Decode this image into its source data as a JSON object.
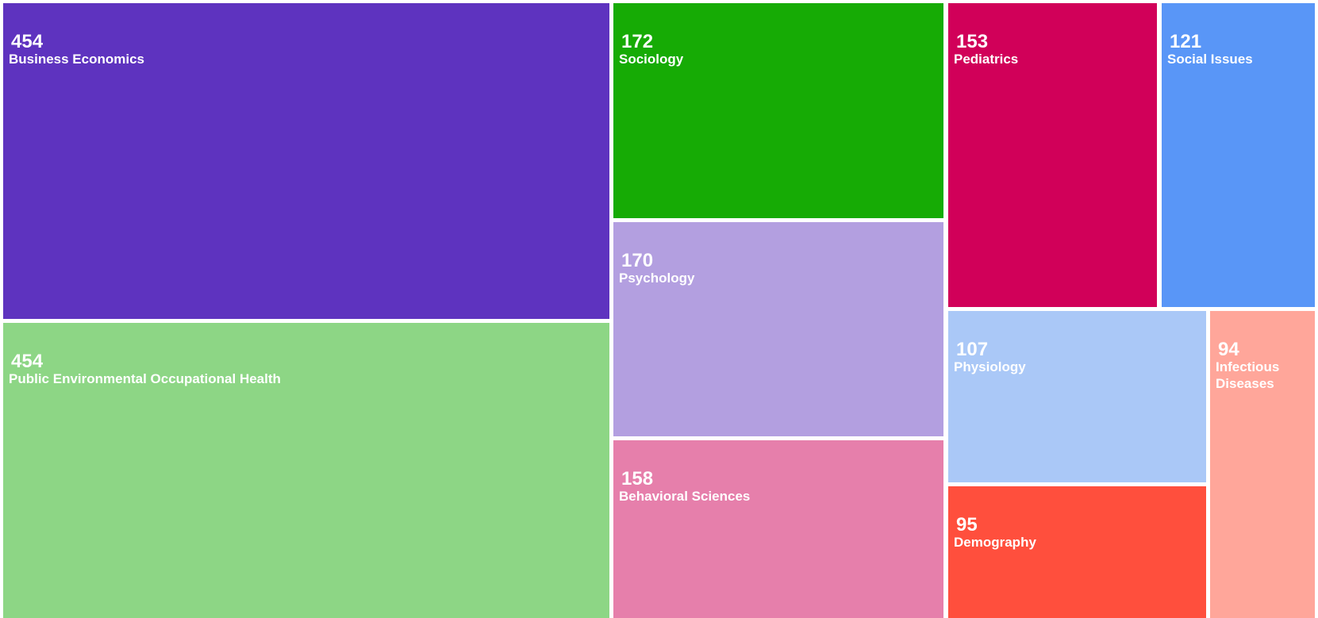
{
  "chart_data": {
    "type": "treemap",
    "items": [
      {
        "label": "Business Economics",
        "value": 454,
        "color": "#5e33bf"
      },
      {
        "label": "Public Environmental Occupational Health",
        "value": 454,
        "color": "#8dd685"
      },
      {
        "label": "Sociology",
        "value": 172,
        "color": "#16ab05"
      },
      {
        "label": "Psychology",
        "value": 170,
        "color": "#b39fe0"
      },
      {
        "label": "Behavioral Sciences",
        "value": 158,
        "color": "#e67fab"
      },
      {
        "label": "Pediatrics",
        "value": 153,
        "color": "#d10059"
      },
      {
        "label": "Social Issues",
        "value": 121,
        "color": "#5996f7"
      },
      {
        "label": "Physiology",
        "value": 107,
        "color": "#aac8f7"
      },
      {
        "label": "Demography",
        "value": 95,
        "color": "#ff4f3d"
      },
      {
        "label": "Infectious Diseases",
        "value": 94,
        "color": "#ffa69a"
      }
    ]
  }
}
